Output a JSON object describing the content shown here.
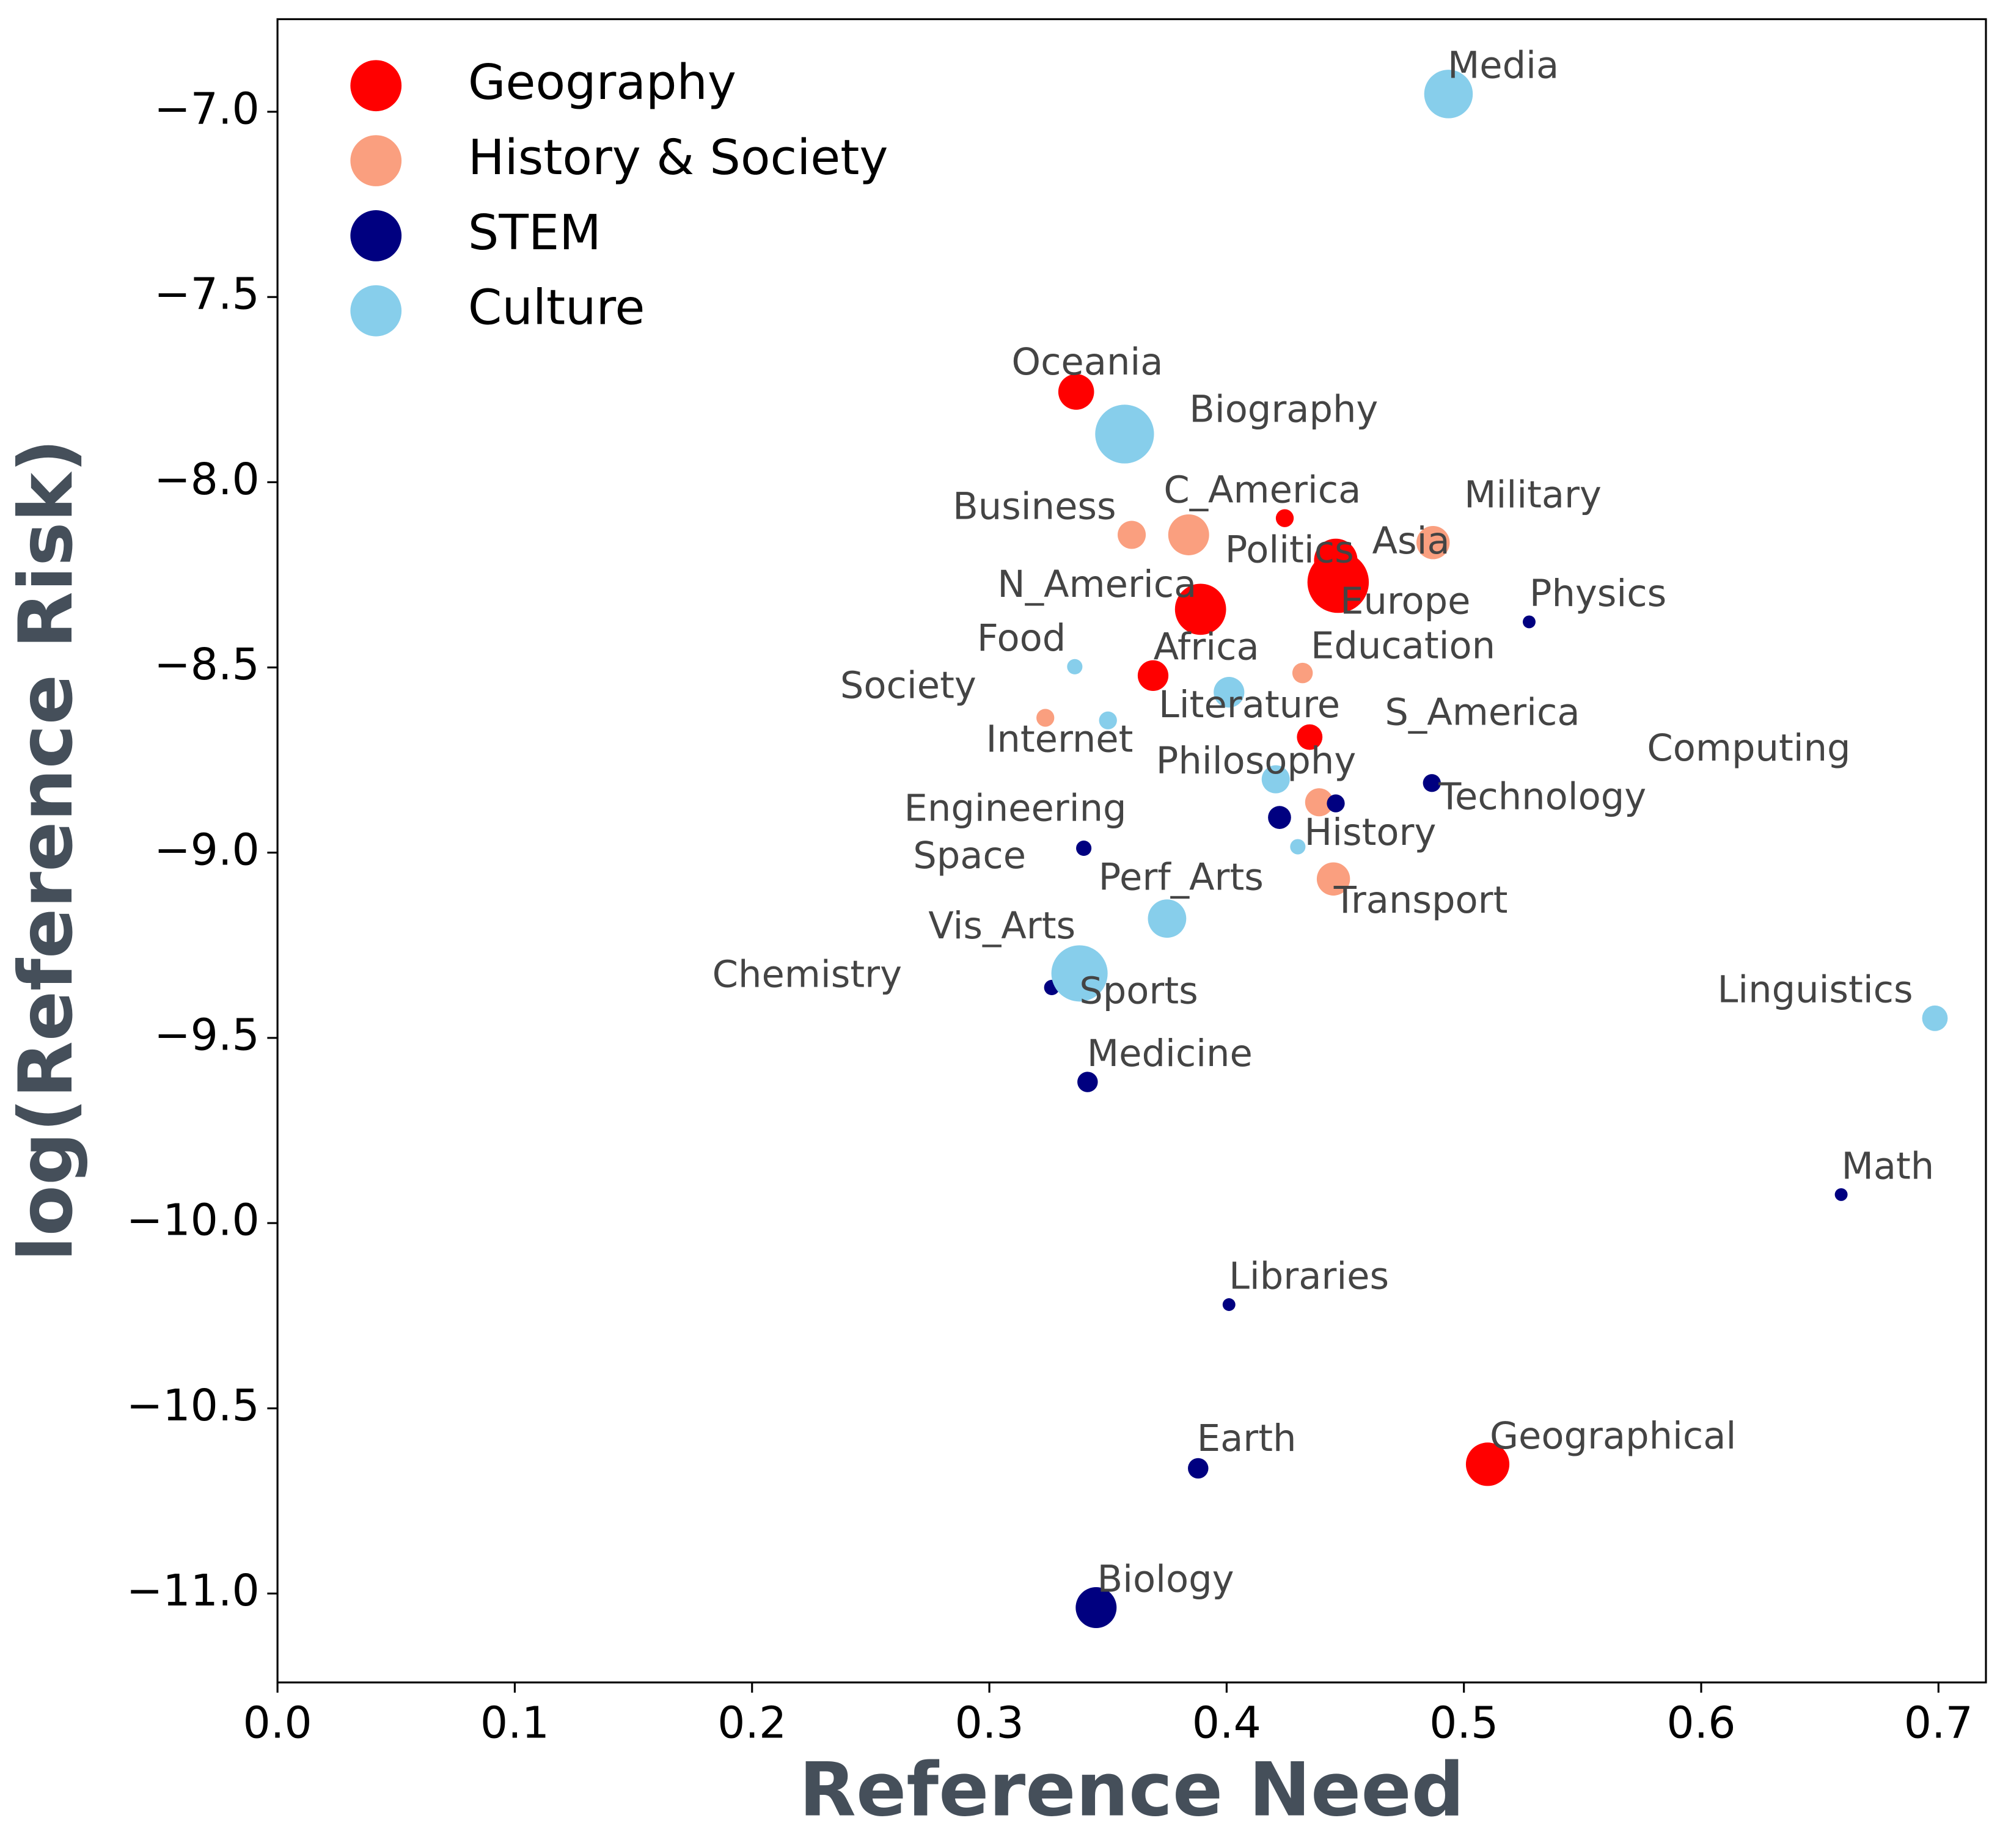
{
  "chart_data": {
    "type": "scatter",
    "x_label": "Reference Need",
    "y_label": "log(Reference Risk)",
    "xlim": [
      0,
      0.72
    ],
    "ylim": [
      -11.24,
      -6.75
    ],
    "xticks": [
      {
        "value": 0,
        "label": "0.0"
      },
      0.1,
      0.2,
      0.3,
      0.4,
      0.5,
      0.6,
      0.7
    ],
    "yticks": [
      {
        "value": -7,
        "label": "−7.0"
      },
      {
        "value": -7.5,
        "label": "−7.5"
      },
      {
        "value": -8,
        "label": "−8.0"
      },
      {
        "value": -8.5,
        "label": "−8.5"
      },
      {
        "value": -9,
        "label": "−9.0"
      },
      {
        "value": -9.5,
        "label": "−9.5"
      },
      {
        "value": -10,
        "label": "−10.0"
      },
      {
        "value": -10.5,
        "label": "−10.5"
      },
      {
        "value": -11,
        "label": "−11.0"
      }
    ],
    "legend": "upper left",
    "series": [
      {
        "name": "Geography",
        "color": "#ff0000",
        "labels": [
          "Oceania",
          "C_America",
          "Asia",
          "Europe",
          "N_America",
          "Africa",
          "S_America",
          "Geographical"
        ],
        "x": [
          0.3366,
          0.4245,
          0.446,
          0.447,
          0.389,
          0.369,
          0.435,
          0.51
        ],
        "y": [
          -7.756,
          -8.097,
          -8.211,
          -8.27,
          -8.343,
          -8.522,
          -8.688,
          -10.651
        ],
        "sizes": [
          14,
          7,
          17,
          24,
          20,
          12,
          10,
          17
        ]
      },
      {
        "name": "History & Society",
        "color": "#fa9f7f",
        "labels": [
          "Business",
          "Politics",
          "Military",
          "Education",
          "Society",
          "History",
          "Transport"
        ],
        "x": [
          0.36,
          0.384,
          0.487,
          0.432,
          0.3236,
          0.439,
          0.445
        ],
        "y": [
          -8.142,
          -8.142,
          -8.163,
          -8.515,
          -8.636,
          -8.864,
          -9.071
        ],
        "sizes": [
          11,
          16,
          13,
          8,
          7,
          11,
          13
        ]
      },
      {
        "name": "STEM",
        "color": "#000080",
        "labels": [
          "Physics",
          "Computing",
          "Technology",
          "Engineering",
          "Space",
          "Chemistry",
          "Medicine",
          "Math",
          "Libraries",
          "Earth",
          "Biology"
        ],
        "x": [
          0.5275,
          0.4865,
          0.446,
          0.4223,
          0.3398,
          0.3263,
          0.3414,
          0.659,
          0.401,
          0.388,
          0.345
        ],
        "y": [
          -8.377,
          -8.812,
          -8.867,
          -8.905,
          -8.988,
          -9.364,
          -9.619,
          -9.923,
          -10.22,
          -10.662,
          -11.038
        ],
        "sizes": [
          5,
          7,
          7,
          9,
          6,
          6,
          8,
          5,
          5,
          8,
          16
        ]
      },
      {
        "name": "Culture",
        "color": "#87ceeb",
        "labels": [
          "Media",
          "Biography",
          "Food",
          "Internet",
          "Literature",
          "Philosophy",
          "Perf_Arts",
          "Vis_Arts",
          "Sports",
          "Linguistics"
        ],
        "x": [
          0.4935,
          0.357,
          0.336,
          0.35,
          0.401,
          0.4207,
          0.43,
          0.3749,
          0.338,
          0.6985
        ],
        "y": [
          -6.952,
          -7.87,
          -8.498,
          -8.643,
          -8.567,
          -8.802,
          -8.984,
          -9.178,
          -9.326,
          -9.447
        ],
        "sizes": [
          19,
          23,
          6,
          7,
          12,
          11,
          6,
          15,
          22,
          10
        ]
      }
    ]
  }
}
